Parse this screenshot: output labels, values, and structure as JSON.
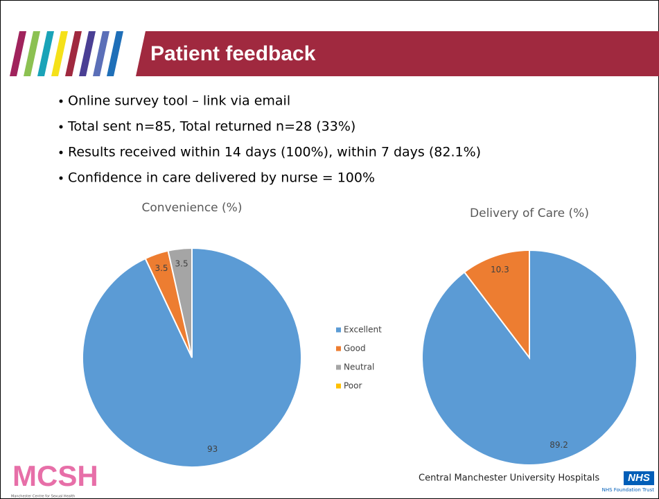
{
  "slide": {
    "title": "Patient feedback",
    "bullets": [
      "Online survey tool – link via email",
      "Total sent n=85, Total returned n=28 (33%)",
      "Results received within 14 days (100%), within 7 days (82.1%)",
      "Confidence in care delivered by nurse = 100%"
    ],
    "logo_left": "MCSH",
    "logo_left_caption": "Manchester Centre for Sexual Health",
    "logo_right": "Central Manchester University Hospitals",
    "logo_right_badge": "NHS",
    "logo_right_caption": "NHS Foundation Trust"
  },
  "chart_data": [
    {
      "type": "pie",
      "title": "Convenience (%)",
      "categories": [
        "Excellent",
        "Good",
        "Neutral",
        "Poor"
      ],
      "values": [
        93,
        3.5,
        3.5,
        0
      ],
      "colors": [
        "#5b9bd5",
        "#ed7d31",
        "#a5a5a5",
        "#ffc000"
      ],
      "legend": "right"
    },
    {
      "type": "pie",
      "title": "Delivery of Care (%)",
      "categories": [
        "Excellent",
        "Good",
        "Neutral",
        "Poor"
      ],
      "values": [
        89.2,
        10.3,
        0,
        0
      ],
      "colors": [
        "#5b9bd5",
        "#ed7d31",
        "#a5a5a5",
        "#ffc000"
      ]
    }
  ]
}
